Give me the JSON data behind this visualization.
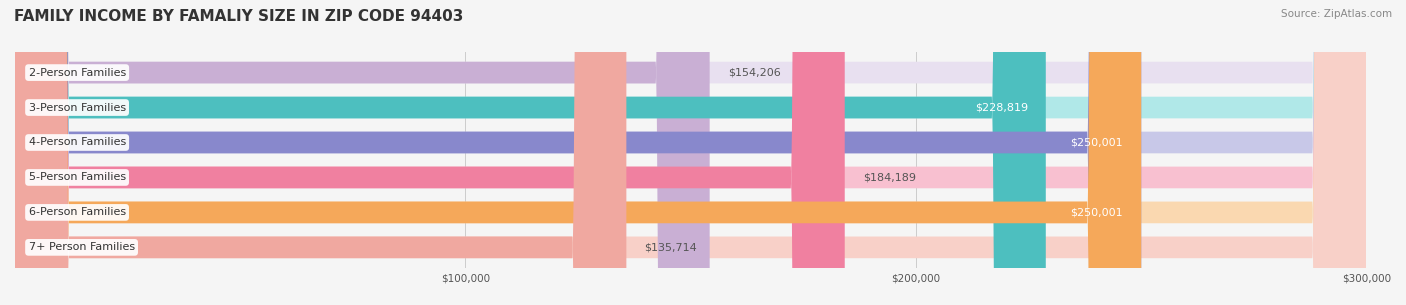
{
  "title": "FAMILY INCOME BY FAMALIY SIZE IN ZIP CODE 94403",
  "source": "Source: ZipAtlas.com",
  "categories": [
    "2-Person Families",
    "3-Person Families",
    "4-Person Families",
    "5-Person Families",
    "6-Person Families",
    "7+ Person Families"
  ],
  "values": [
    154206,
    228819,
    250001,
    184189,
    250001,
    135714
  ],
  "bar_colors": [
    "#c9afd4",
    "#4dbfbf",
    "#8888cc",
    "#f080a0",
    "#f5a85a",
    "#f0a8a0"
  ],
  "label_colors": [
    "#555555",
    "#ffffff",
    "#ffffff",
    "#555555",
    "#ffffff",
    "#555555"
  ],
  "bg_colors": [
    "#e8e0f0",
    "#b0e8e8",
    "#c8c8e8",
    "#f8c0d0",
    "#fad8b0",
    "#f8d0c8"
  ],
  "xmin": 0,
  "xmax": 300000,
  "xticks": [
    100000,
    200000,
    300000
  ],
  "xtick_labels": [
    "$100,000",
    "$200,000",
    "$300,000"
  ],
  "value_labels": [
    "$154,206",
    "$228,819",
    "$250,001",
    "$184,189",
    "$250,001",
    "$135,714"
  ],
  "bar_height": 0.62,
  "bg_color": "#f5f5f5",
  "title_color": "#333333",
  "title_fontsize": 11,
  "source_fontsize": 7.5,
  "label_fontsize": 8,
  "value_fontsize": 8
}
